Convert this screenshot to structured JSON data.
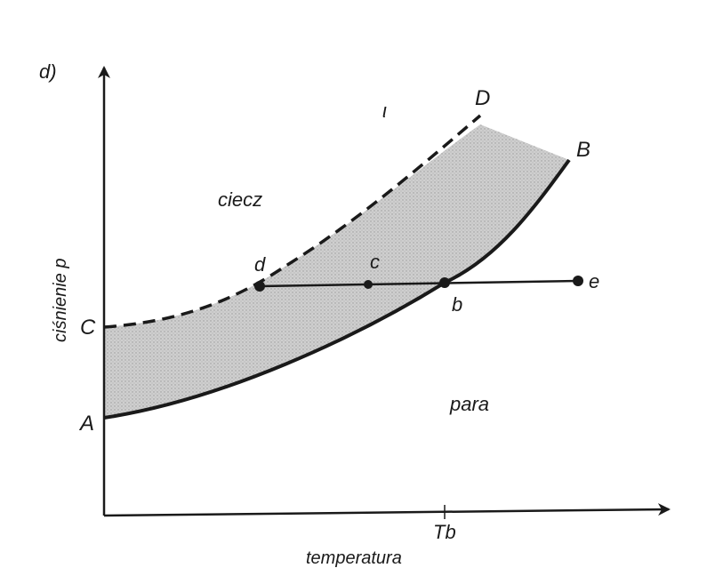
{
  "panel_label": "d)",
  "axes": {
    "y_title": "ciśnienie p",
    "x_title": "temperatura",
    "x_tick": "Tb"
  },
  "curve_labels": {
    "A": "A",
    "B": "B",
    "C": "C",
    "D": "D"
  },
  "point_labels": {
    "d": "d",
    "c": "c",
    "b": "b",
    "e": "e"
  },
  "regions": {
    "liquid": "ciecz",
    "vapor": "para",
    "mark": "ι"
  },
  "colors": {
    "ink": "#1a1a1a",
    "band_fill": "#c8c8c8"
  }
}
